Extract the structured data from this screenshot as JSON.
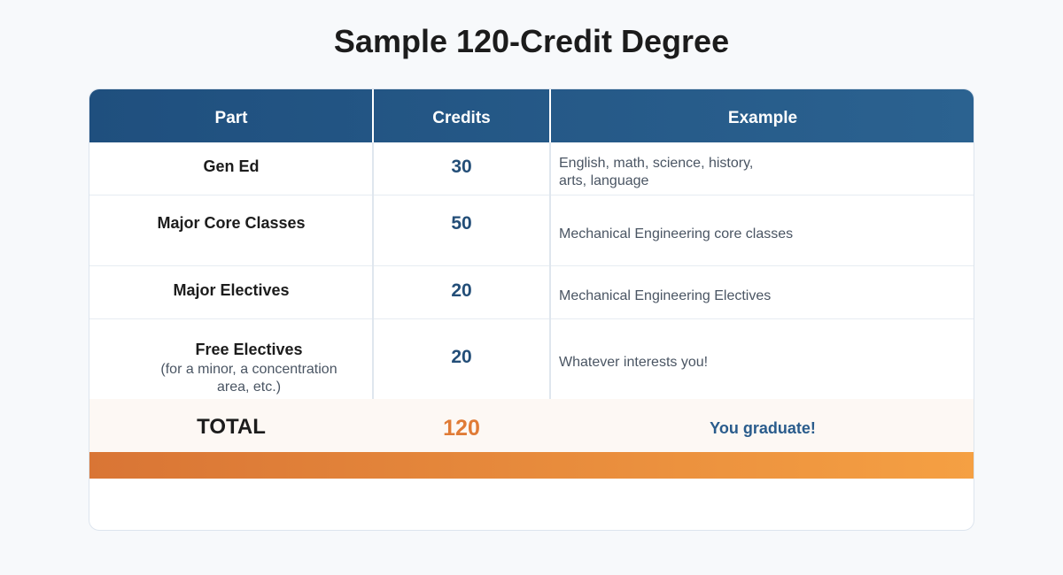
{
  "title": "Sample 120-Credit Degree",
  "headers": {
    "part": "Part",
    "credits": "Credits",
    "example": "Example"
  },
  "rows": [
    {
      "part": "Gen Ed",
      "sub": "",
      "credits": "30",
      "example": "English, math, science, history,\narts, language"
    },
    {
      "part": "Major Core Classes",
      "sub": "",
      "credits": "50",
      "example": "Mechanical Engineering core classes"
    },
    {
      "part": "Major Electives",
      "sub": "",
      "credits": "20",
      "example": "Mechanical Engineering Electives"
    },
    {
      "part": "Free Electives",
      "sub": "(for a minor, a concentration area, etc.)",
      "credits": "20",
      "example": "Whatever interests you!"
    }
  ],
  "total": {
    "label": "TOTAL",
    "credits": "120",
    "note": "You graduate!"
  },
  "colors": {
    "header": "#1f4f7e",
    "accent": "#e07b36",
    "credit_text": "#234e78"
  }
}
